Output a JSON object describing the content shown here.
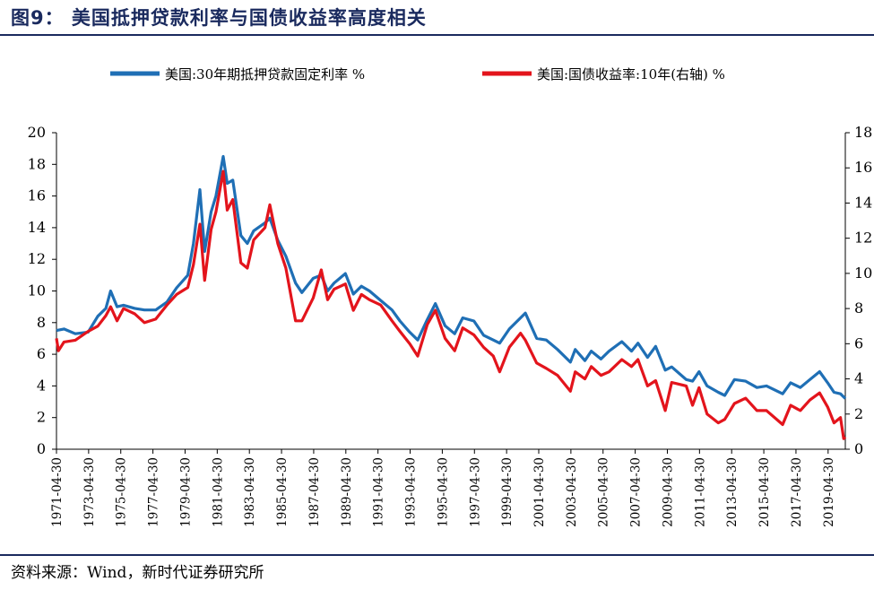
{
  "figure": {
    "title": "图9：  美国抵押贷款利率与国债收益率高度相关",
    "source": "资料来源：Wind，新时代证券研究所"
  },
  "colors": {
    "mortgage": "#1f6fb5",
    "treasury": "#e3141c",
    "title": "#1a2a5e"
  },
  "chart_data": {
    "type": "line",
    "legend_position": "top",
    "grid": false,
    "y_left": {
      "min": 0,
      "max": 20,
      "ticks": [
        "0",
        "2",
        "4",
        "6",
        "8",
        "10",
        "12",
        "14",
        "16",
        "18",
        "20"
      ]
    },
    "y_right": {
      "min": 0,
      "max": 18,
      "ticks": [
        "0",
        "2",
        "4",
        "6",
        "8",
        "10",
        "12",
        "14",
        "16",
        "18"
      ]
    },
    "x_range": [
      1971.33,
      2020.4
    ],
    "x_ticks": [
      "1971-04-30",
      "1973-04-30",
      "1975-04-30",
      "1977-04-30",
      "1979-04-30",
      "1981-04-30",
      "1983-04-30",
      "1985-04-30",
      "1987-04-30",
      "1989-04-30",
      "1991-04-30",
      "1993-04-30",
      "1995-04-30",
      "1997-04-30",
      "1999-04-30",
      "2001-04-30",
      "2003-04-30",
      "2005-04-30",
      "2007-04-30",
      "2009-04-30",
      "2011-04-30",
      "2013-04-30",
      "2015-04-30",
      "2017-04-30",
      "2019-04-30"
    ],
    "series": [
      {
        "name": "美国:30年期抵押贷款固定利率 %",
        "axis": "left",
        "points": [
          [
            1971.33,
            7.5
          ],
          [
            1971.8,
            7.6
          ],
          [
            1972.5,
            7.3
          ],
          [
            1973.3,
            7.4
          ],
          [
            1973.9,
            8.4
          ],
          [
            1974.4,
            8.9
          ],
          [
            1974.7,
            10.0
          ],
          [
            1975.1,
            9.0
          ],
          [
            1975.5,
            9.1
          ],
          [
            1976.2,
            8.9
          ],
          [
            1976.8,
            8.8
          ],
          [
            1977.5,
            8.8
          ],
          [
            1978.2,
            9.3
          ],
          [
            1978.8,
            10.2
          ],
          [
            1979.5,
            11.0
          ],
          [
            1979.85,
            13.0
          ],
          [
            1980.25,
            16.4
          ],
          [
            1980.55,
            12.5
          ],
          [
            1980.95,
            15.0
          ],
          [
            1981.25,
            16.0
          ],
          [
            1981.7,
            18.5
          ],
          [
            1981.95,
            16.8
          ],
          [
            1982.3,
            17.0
          ],
          [
            1982.8,
            13.5
          ],
          [
            1983.2,
            13.0
          ],
          [
            1983.6,
            13.8
          ],
          [
            1984.3,
            14.3
          ],
          [
            1984.6,
            14.6
          ],
          [
            1985.1,
            13.2
          ],
          [
            1985.6,
            12.2
          ],
          [
            1986.2,
            10.5
          ],
          [
            1986.6,
            9.9
          ],
          [
            1987.3,
            10.8
          ],
          [
            1987.8,
            11.0
          ],
          [
            1988.2,
            10.0
          ],
          [
            1988.6,
            10.5
          ],
          [
            1989.3,
            11.1
          ],
          [
            1989.8,
            9.8
          ],
          [
            1990.3,
            10.3
          ],
          [
            1990.8,
            10.0
          ],
          [
            1991.5,
            9.4
          ],
          [
            1992.2,
            8.8
          ],
          [
            1992.7,
            8.1
          ],
          [
            1993.3,
            7.4
          ],
          [
            1993.8,
            6.9
          ],
          [
            1994.4,
            8.2
          ],
          [
            1994.9,
            9.2
          ],
          [
            1995.5,
            7.8
          ],
          [
            1996.1,
            7.3
          ],
          [
            1996.6,
            8.3
          ],
          [
            1997.3,
            8.1
          ],
          [
            1997.9,
            7.2
          ],
          [
            1998.5,
            6.9
          ],
          [
            1998.9,
            6.7
          ],
          [
            1999.5,
            7.6
          ],
          [
            2000.2,
            8.3
          ],
          [
            2000.5,
            8.6
          ],
          [
            2001.2,
            7.0
          ],
          [
            2001.8,
            6.9
          ],
          [
            2002.5,
            6.3
          ],
          [
            2003.3,
            5.5
          ],
          [
            2003.6,
            6.3
          ],
          [
            2004.2,
            5.6
          ],
          [
            2004.6,
            6.2
          ],
          [
            2005.2,
            5.7
          ],
          [
            2005.7,
            6.2
          ],
          [
            2006.5,
            6.8
          ],
          [
            2007.1,
            6.2
          ],
          [
            2007.5,
            6.7
          ],
          [
            2008.1,
            5.8
          ],
          [
            2008.6,
            6.5
          ],
          [
            2009.2,
            5.0
          ],
          [
            2009.6,
            5.2
          ],
          [
            2010.5,
            4.4
          ],
          [
            2010.9,
            4.3
          ],
          [
            2011.3,
            4.9
          ],
          [
            2011.8,
            4.0
          ],
          [
            2012.5,
            3.6
          ],
          [
            2012.9,
            3.4
          ],
          [
            2013.5,
            4.4
          ],
          [
            2014.2,
            4.3
          ],
          [
            2014.9,
            3.9
          ],
          [
            2015.5,
            4.0
          ],
          [
            2016.5,
            3.5
          ],
          [
            2017.0,
            4.2
          ],
          [
            2017.6,
            3.9
          ],
          [
            2018.2,
            4.4
          ],
          [
            2018.8,
            4.9
          ],
          [
            2019.3,
            4.2
          ],
          [
            2019.7,
            3.6
          ],
          [
            2020.1,
            3.5
          ],
          [
            2020.4,
            3.2
          ]
        ]
      },
      {
        "name": "美国:国债收益率:10年(右轴) %",
        "axis": "right",
        "points": [
          [
            1971.33,
            6.3
          ],
          [
            1971.45,
            5.6
          ],
          [
            1971.8,
            6.1
          ],
          [
            1972.5,
            6.2
          ],
          [
            1973.3,
            6.7
          ],
          [
            1973.9,
            7.0
          ],
          [
            1974.4,
            7.6
          ],
          [
            1974.7,
            8.1
          ],
          [
            1975.1,
            7.3
          ],
          [
            1975.5,
            8.0
          ],
          [
            1976.2,
            7.7
          ],
          [
            1976.8,
            7.2
          ],
          [
            1977.5,
            7.4
          ],
          [
            1978.2,
            8.2
          ],
          [
            1978.8,
            8.8
          ],
          [
            1979.5,
            9.2
          ],
          [
            1979.85,
            10.5
          ],
          [
            1980.25,
            12.8
          ],
          [
            1980.55,
            9.6
          ],
          [
            1980.95,
            12.5
          ],
          [
            1981.25,
            13.5
          ],
          [
            1981.7,
            15.8
          ],
          [
            1981.95,
            13.6
          ],
          [
            1982.3,
            14.2
          ],
          [
            1982.8,
            10.6
          ],
          [
            1983.2,
            10.3
          ],
          [
            1983.6,
            11.9
          ],
          [
            1984.3,
            12.6
          ],
          [
            1984.6,
            13.9
          ],
          [
            1985.1,
            11.7
          ],
          [
            1985.6,
            10.3
          ],
          [
            1986.2,
            7.3
          ],
          [
            1986.6,
            7.3
          ],
          [
            1987.3,
            8.6
          ],
          [
            1987.8,
            10.2
          ],
          [
            1988.2,
            8.5
          ],
          [
            1988.6,
            9.1
          ],
          [
            1989.3,
            9.4
          ],
          [
            1989.8,
            7.9
          ],
          [
            1990.3,
            8.8
          ],
          [
            1990.8,
            8.5
          ],
          [
            1991.5,
            8.2
          ],
          [
            1992.2,
            7.3
          ],
          [
            1992.7,
            6.7
          ],
          [
            1993.3,
            6.0
          ],
          [
            1993.8,
            5.3
          ],
          [
            1994.4,
            7.1
          ],
          [
            1994.9,
            7.9
          ],
          [
            1995.5,
            6.3
          ],
          [
            1996.1,
            5.6
          ],
          [
            1996.6,
            6.9
          ],
          [
            1997.3,
            6.5
          ],
          [
            1997.9,
            5.8
          ],
          [
            1998.5,
            5.3
          ],
          [
            1998.9,
            4.4
          ],
          [
            1999.5,
            5.8
          ],
          [
            2000.2,
            6.6
          ],
          [
            2000.5,
            6.2
          ],
          [
            2001.2,
            4.9
          ],
          [
            2001.8,
            4.6
          ],
          [
            2002.5,
            4.2
          ],
          [
            2003.3,
            3.3
          ],
          [
            2003.6,
            4.4
          ],
          [
            2004.2,
            4.0
          ],
          [
            2004.6,
            4.7
          ],
          [
            2005.2,
            4.2
          ],
          [
            2005.7,
            4.4
          ],
          [
            2006.5,
            5.1
          ],
          [
            2007.1,
            4.7
          ],
          [
            2007.5,
            5.1
          ],
          [
            2008.1,
            3.6
          ],
          [
            2008.6,
            3.9
          ],
          [
            2009.2,
            2.2
          ],
          [
            2009.6,
            3.8
          ],
          [
            2010.5,
            3.6
          ],
          [
            2010.9,
            2.5
          ],
          [
            2011.3,
            3.5
          ],
          [
            2011.8,
            2.0
          ],
          [
            2012.5,
            1.5
          ],
          [
            2012.9,
            1.7
          ],
          [
            2013.5,
            2.6
          ],
          [
            2014.2,
            2.9
          ],
          [
            2014.9,
            2.2
          ],
          [
            2015.5,
            2.2
          ],
          [
            2016.5,
            1.4
          ],
          [
            2017.0,
            2.5
          ],
          [
            2017.6,
            2.2
          ],
          [
            2018.2,
            2.8
          ],
          [
            2018.8,
            3.2
          ],
          [
            2019.3,
            2.4
          ],
          [
            2019.7,
            1.5
          ],
          [
            2020.1,
            1.8
          ],
          [
            2020.3,
            0.6
          ],
          [
            2020.4,
            0.7
          ]
        ]
      }
    ]
  }
}
